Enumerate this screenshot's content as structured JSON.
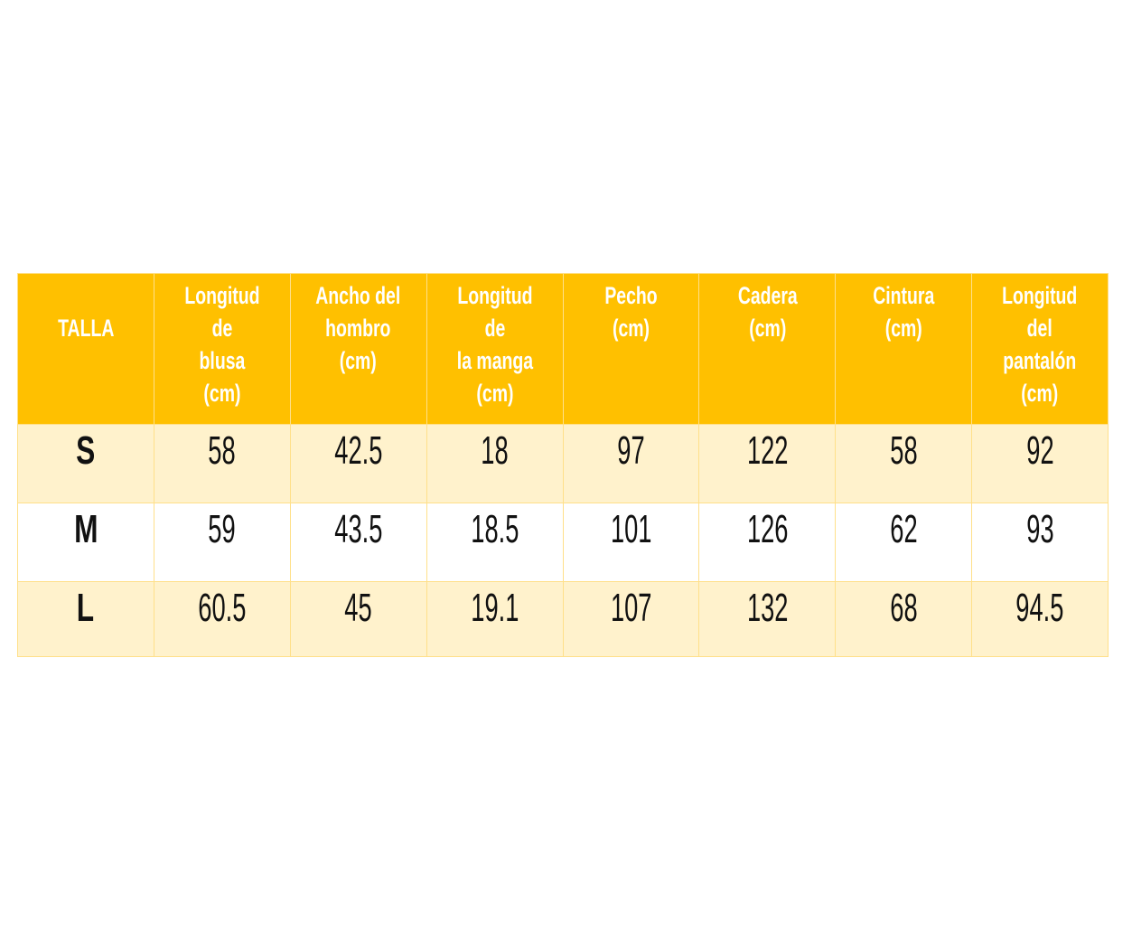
{
  "colors": {
    "header": "#FFC000",
    "row_alt": "#FFF2CC",
    "border": "#FFE08A"
  },
  "table": {
    "headers": [
      "TALLA",
      "Longitud de\nblusa\n(cm)",
      "Ancho del\nhombro\n(cm)",
      "Longitud de\nla manga\n(cm)",
      "Pecho\n(cm)",
      "Cadera\n(cm)",
      "Cintura\n(cm)",
      "Longitud\ndel\npantalón\n(cm)"
    ],
    "rows": [
      [
        "S",
        "58",
        "42.5",
        "18",
        "97",
        "122",
        "58",
        "92"
      ],
      [
        "M",
        "59",
        "43.5",
        "18.5",
        "101",
        "126",
        "62",
        "93"
      ],
      [
        "L",
        "60.5",
        "45",
        "19.1",
        "107",
        "132",
        "68",
        "94.5"
      ]
    ]
  }
}
